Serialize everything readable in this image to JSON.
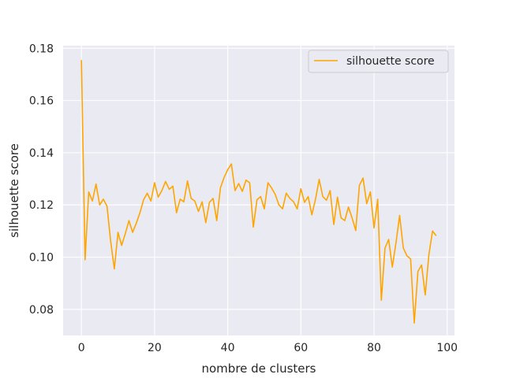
{
  "chart_data": {
    "type": "line",
    "xlabel": "nombre de clusters",
    "ylabel": "silhouette score",
    "xlim": [
      -5,
      102
    ],
    "ylim": [
      0.07,
      0.181
    ],
    "xticks": [
      0,
      20,
      40,
      60,
      80,
      100
    ],
    "yticks": [
      0.08,
      0.1,
      0.12,
      0.14,
      0.16,
      0.18
    ],
    "ytick_labels": [
      "0.08",
      "0.10",
      "0.12",
      "0.14",
      "0.16",
      "0.18"
    ],
    "grid": true,
    "legend_position": "top-right",
    "colors": {
      "background": "#eaeaf2",
      "grid": "#ffffff",
      "series": "#ffa500"
    },
    "series": [
      {
        "name": "silhouette score",
        "color": "#ffa500",
        "x": [
          0,
          1,
          2,
          3,
          4,
          5,
          6,
          7,
          8,
          9,
          10,
          11,
          12,
          13,
          14,
          15,
          16,
          17,
          18,
          19,
          20,
          21,
          22,
          23,
          24,
          25,
          26,
          27,
          28,
          29,
          30,
          31,
          32,
          33,
          34,
          35,
          36,
          37,
          38,
          39,
          40,
          41,
          42,
          43,
          44,
          45,
          46,
          47,
          48,
          49,
          50,
          51,
          52,
          53,
          54,
          55,
          56,
          57,
          58,
          59,
          60,
          61,
          62,
          63,
          64,
          65,
          66,
          67,
          68,
          69,
          70,
          71,
          72,
          73,
          74,
          75,
          76,
          77,
          78,
          79,
          80,
          81,
          82,
          83,
          84,
          85,
          86,
          87,
          88,
          89,
          90,
          91,
          92,
          93,
          94,
          95,
          96,
          97
        ],
        "y": [
          0.1755,
          0.099,
          0.125,
          0.1215,
          0.128,
          0.12,
          0.1222,
          0.1195,
          0.106,
          0.0955,
          0.1095,
          0.1045,
          0.109,
          0.114,
          0.1095,
          0.113,
          0.117,
          0.122,
          0.1245,
          0.1215,
          0.1285,
          0.123,
          0.1255,
          0.129,
          0.126,
          0.1272,
          0.117,
          0.1222,
          0.1212,
          0.1292,
          0.1225,
          0.1215,
          0.1175,
          0.1212,
          0.1132,
          0.121,
          0.1225,
          0.114,
          0.1265,
          0.1305,
          0.1335,
          0.1357,
          0.1255,
          0.1282,
          0.1252,
          0.1295,
          0.1285,
          0.1115,
          0.122,
          0.1232,
          0.1185,
          0.1285,
          0.1265,
          0.124,
          0.12,
          0.1185,
          0.1245,
          0.1225,
          0.1212,
          0.1185,
          0.1262,
          0.121,
          0.1232,
          0.1162,
          0.1222,
          0.1298,
          0.1232,
          0.1218,
          0.1255,
          0.1125,
          0.123,
          0.115,
          0.114,
          0.1192,
          0.115,
          0.1102,
          0.1275,
          0.1303,
          0.1205,
          0.125,
          0.1112,
          0.1222,
          0.0835,
          0.1035,
          0.1068,
          0.0962,
          0.1055,
          0.116,
          0.1035,
          0.1005,
          0.0993,
          0.0748,
          0.0945,
          0.097,
          0.0855,
          0.101,
          0.11,
          0.1082
        ]
      }
    ]
  }
}
